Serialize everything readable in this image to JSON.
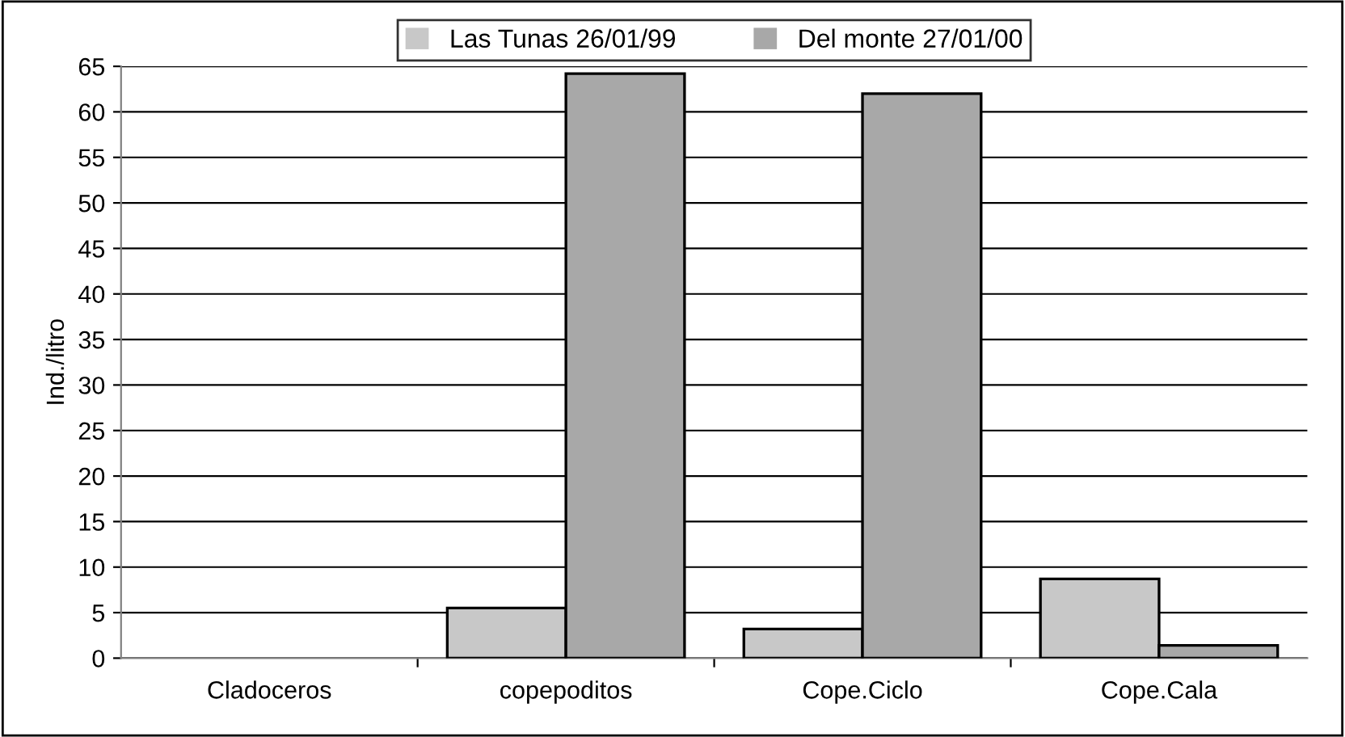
{
  "chart_data": {
    "type": "bar",
    "ylabel": "Ind./litro",
    "categories": [
      "Cladoceros",
      "copepoditos",
      "Cope.Ciclo",
      "Cope.Cala"
    ],
    "series": [
      {
        "name": "Las Tunas 26/01/99",
        "color": "#c8c8c8",
        "values": [
          0,
          5.5,
          3.2,
          8.7
        ]
      },
      {
        "name": "Del monte 27/01/00",
        "color": "#a8a8a8",
        "values": [
          0,
          64.2,
          62,
          1.4
        ]
      }
    ],
    "ylim": [
      0,
      65
    ],
    "yticks": [
      0,
      5,
      10,
      15,
      20,
      25,
      30,
      35,
      40,
      45,
      50,
      55,
      60,
      65
    ],
    "grid": "y",
    "legend": "top"
  }
}
